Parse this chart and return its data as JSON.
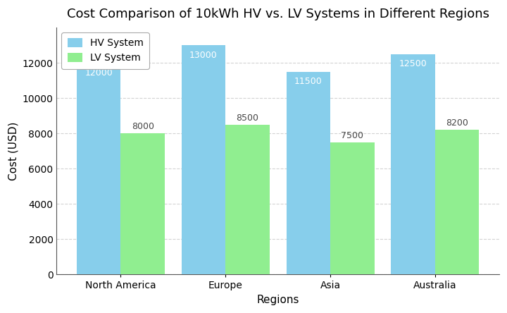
{
  "title": "Cost Comparison of 10kWh HV vs. LV Systems in Different Regions",
  "xlabel": "Regions",
  "ylabel": "Cost (USD)",
  "regions": [
    "North America",
    "Europe",
    "Asia",
    "Australia"
  ],
  "hv_values": [
    12000,
    13000,
    11500,
    12500
  ],
  "lv_values": [
    8000,
    8500,
    7500,
    8200
  ],
  "hv_color": "#87CEEB",
  "lv_color": "#90EE90",
  "hv_label": "HV System",
  "lv_label": "LV System",
  "ylim": [
    0,
    14000
  ],
  "yticks": [
    0,
    2000,
    4000,
    6000,
    8000,
    10000,
    12000
  ],
  "background_color": "#ffffff",
  "bar_width": 0.42,
  "title_fontsize": 13,
  "axis_label_fontsize": 11,
  "tick_fontsize": 10,
  "annotation_fontsize": 9,
  "grid_color": "#c8c8c8",
  "grid_linestyle": "--",
  "grid_alpha": 0.8,
  "spine_color": "#555555",
  "hv_label_inside": true,
  "hv_label_color": "#ffffff"
}
